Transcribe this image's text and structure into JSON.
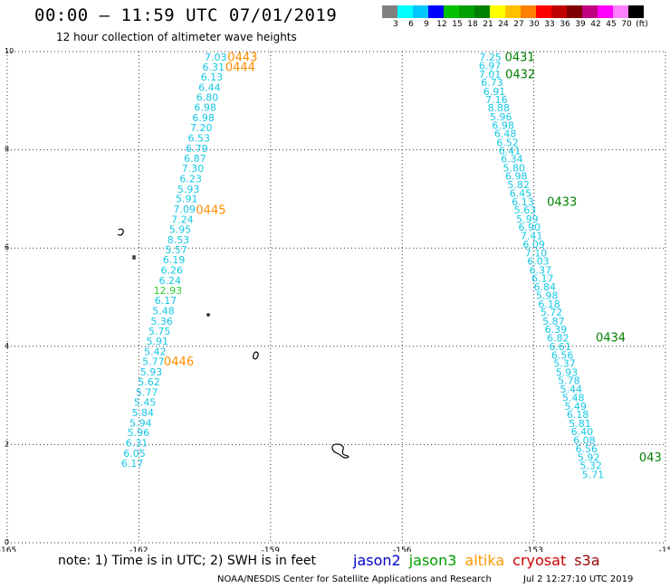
{
  "header": {
    "title": "00:00 – 11:59 UTC 07/01/2019",
    "subtitle": "12 hour collection of altimeter wave heights"
  },
  "legend": {
    "colors": [
      "#808080",
      "#00ffff",
      "#00c8ff",
      "#0000ff",
      "#00c000",
      "#00a000",
      "#008000",
      "#ffff00",
      "#ffc000",
      "#ff8000",
      "#ff0000",
      "#c00000",
      "#800000",
      "#c00080",
      "#ff00ff",
      "#ff80ff",
      "#000000"
    ],
    "labels": [
      "3",
      "6",
      "9",
      "12",
      "15",
      "18",
      "21",
      "24",
      "27",
      "30",
      "33",
      "36",
      "39",
      "42",
      "45",
      "70",
      "(ft)"
    ]
  },
  "map": {
    "lon_min": -165,
    "lon_max": -150,
    "lat_min": 0,
    "lat_max": 10,
    "x_ticks": [
      "-165",
      "-162",
      "-159",
      "-156",
      "-153",
      "-15"
    ],
    "y_ticks": [
      "0",
      "2",
      "4",
      "6",
      "8",
      "10"
    ],
    "track_colors": {
      "cyan": "#14c8e6",
      "green": "#30d030",
      "orange": "#ff8c00",
      "darkgreen": "#008000"
    },
    "track1": [
      {
        "lon": -160.25,
        "lat": 9.82,
        "v": "7.03"
      },
      {
        "lon": -160.3,
        "lat": 9.61,
        "v": "6.31"
      },
      {
        "lon": -160.34,
        "lat": 9.41,
        "v": "6.13"
      },
      {
        "lon": -160.39,
        "lat": 9.2,
        "v": "6.44"
      },
      {
        "lon": -160.44,
        "lat": 9.0,
        "v": "6.80"
      },
      {
        "lon": -160.49,
        "lat": 8.79,
        "v": "6.98"
      },
      {
        "lon": -160.53,
        "lat": 8.58,
        "v": "6.98"
      },
      {
        "lon": -160.58,
        "lat": 8.38,
        "v": "7.20"
      },
      {
        "lon": -160.63,
        "lat": 8.17,
        "v": "6.53"
      },
      {
        "lon": -160.68,
        "lat": 7.96,
        "v": "6.79"
      },
      {
        "lon": -160.72,
        "lat": 7.75,
        "v": "6.87"
      },
      {
        "lon": -160.77,
        "lat": 7.55,
        "v": "7.30"
      },
      {
        "lon": -160.82,
        "lat": 7.34,
        "v": "6.23"
      },
      {
        "lon": -160.87,
        "lat": 7.13,
        "v": "5.93"
      },
      {
        "lon": -160.91,
        "lat": 6.93,
        "v": "5.91"
      },
      {
        "lon": -160.96,
        "lat": 6.72,
        "v": "7.09"
      },
      {
        "lon": -161.01,
        "lat": 6.51,
        "v": "7.24"
      },
      {
        "lon": -161.06,
        "lat": 6.31,
        "v": "5.95"
      },
      {
        "lon": -161.1,
        "lat": 6.1,
        "v": "8.53"
      },
      {
        "lon": -161.15,
        "lat": 5.89,
        "v": "5.57"
      },
      {
        "lon": -161.2,
        "lat": 5.69,
        "v": "6.19"
      },
      {
        "lon": -161.25,
        "lat": 5.48,
        "v": "6.26"
      },
      {
        "lon": -161.29,
        "lat": 5.27,
        "v": "6.24"
      },
      {
        "lon": -161.34,
        "lat": 5.06,
        "v": "12.93",
        "c": "green"
      },
      {
        "lon": -161.39,
        "lat": 4.86,
        "v": "6.17"
      },
      {
        "lon": -161.44,
        "lat": 4.65,
        "v": "5.48"
      },
      {
        "lon": -161.48,
        "lat": 4.44,
        "v": "5.36"
      },
      {
        "lon": -161.53,
        "lat": 4.24,
        "v": "5.75"
      },
      {
        "lon": -161.58,
        "lat": 4.03,
        "v": "5.91"
      },
      {
        "lon": -161.63,
        "lat": 3.82,
        "v": "5.42"
      },
      {
        "lon": -161.67,
        "lat": 3.62,
        "v": "5.77"
      },
      {
        "lon": -161.72,
        "lat": 3.41,
        "v": "5.93"
      },
      {
        "lon": -161.77,
        "lat": 3.2,
        "v": "5.62"
      },
      {
        "lon": -161.82,
        "lat": 2.99,
        "v": "5.77"
      },
      {
        "lon": -161.86,
        "lat": 2.79,
        "v": "5.45"
      },
      {
        "lon": -161.91,
        "lat": 2.58,
        "v": "5.84"
      },
      {
        "lon": -161.96,
        "lat": 2.37,
        "v": "5.94"
      },
      {
        "lon": -162.01,
        "lat": 2.17,
        "v": "5.96"
      },
      {
        "lon": -162.05,
        "lat": 1.96,
        "v": "6.31"
      },
      {
        "lon": -162.1,
        "lat": 1.75,
        "v": "6.05"
      },
      {
        "lon": -162.15,
        "lat": 1.55,
        "v": "6.17"
      }
    ],
    "track2": [
      {
        "lon": -153.99,
        "lat": 9.82,
        "v": "7.25"
      },
      {
        "lon": -154.0,
        "lat": 9.64,
        "v": "6.97"
      },
      {
        "lon": -154.0,
        "lat": 9.47,
        "v": "7.01"
      },
      {
        "lon": -153.95,
        "lat": 9.3,
        "v": "6.73"
      },
      {
        "lon": -153.9,
        "lat": 9.12,
        "v": "6.91"
      },
      {
        "lon": -153.85,
        "lat": 8.95,
        "v": "7.16"
      },
      {
        "lon": -153.8,
        "lat": 8.78,
        "v": "8.88"
      },
      {
        "lon": -153.75,
        "lat": 8.6,
        "v": "5.96"
      },
      {
        "lon": -153.7,
        "lat": 8.43,
        "v": "6.98"
      },
      {
        "lon": -153.65,
        "lat": 8.26,
        "v": "6.48"
      },
      {
        "lon": -153.6,
        "lat": 8.08,
        "v": "6.52"
      },
      {
        "lon": -153.55,
        "lat": 7.91,
        "v": "6.41"
      },
      {
        "lon": -153.5,
        "lat": 7.74,
        "v": "6.34"
      },
      {
        "lon": -153.45,
        "lat": 7.56,
        "v": "5.80"
      },
      {
        "lon": -153.4,
        "lat": 7.39,
        "v": "6.98"
      },
      {
        "lon": -153.35,
        "lat": 7.22,
        "v": "5.82"
      },
      {
        "lon": -153.3,
        "lat": 7.04,
        "v": "6.45"
      },
      {
        "lon": -153.25,
        "lat": 6.87,
        "v": "6.13"
      },
      {
        "lon": -153.2,
        "lat": 6.7,
        "v": "5.63"
      },
      {
        "lon": -153.15,
        "lat": 6.52,
        "v": "5.99"
      },
      {
        "lon": -153.1,
        "lat": 6.35,
        "v": "6.90"
      },
      {
        "lon": -153.05,
        "lat": 6.18,
        "v": "7.41"
      },
      {
        "lon": -153.0,
        "lat": 6.0,
        "v": "6.09"
      },
      {
        "lon": -152.95,
        "lat": 5.83,
        "v": "7.10"
      },
      {
        "lon": -152.9,
        "lat": 5.66,
        "v": "6.03"
      },
      {
        "lon": -152.85,
        "lat": 5.48,
        "v": "6.37"
      },
      {
        "lon": -152.8,
        "lat": 5.31,
        "v": "6.17"
      },
      {
        "lon": -152.75,
        "lat": 5.14,
        "v": "6.84"
      },
      {
        "lon": -152.7,
        "lat": 4.96,
        "v": "5.98"
      },
      {
        "lon": -152.65,
        "lat": 4.79,
        "v": "6.18"
      },
      {
        "lon": -152.6,
        "lat": 4.62,
        "v": "5.72"
      },
      {
        "lon": -152.55,
        "lat": 4.44,
        "v": "5.87"
      },
      {
        "lon": -152.5,
        "lat": 4.27,
        "v": "6.39"
      },
      {
        "lon": -152.45,
        "lat": 4.1,
        "v": "6.82"
      },
      {
        "lon": -152.4,
        "lat": 3.92,
        "v": "6.61"
      },
      {
        "lon": -152.35,
        "lat": 3.75,
        "v": "6.56"
      },
      {
        "lon": -152.3,
        "lat": 3.58,
        "v": "5.37"
      },
      {
        "lon": -152.25,
        "lat": 3.4,
        "v": "5.93"
      },
      {
        "lon": -152.2,
        "lat": 3.23,
        "v": "5.78"
      },
      {
        "lon": -152.15,
        "lat": 3.06,
        "v": "5.44"
      },
      {
        "lon": -152.1,
        "lat": 2.88,
        "v": "5.48"
      },
      {
        "lon": -152.05,
        "lat": 2.71,
        "v": "5.49"
      },
      {
        "lon": -152.0,
        "lat": 2.54,
        "v": "6.18"
      },
      {
        "lon": -151.95,
        "lat": 2.36,
        "v": "5.81"
      },
      {
        "lon": -151.9,
        "lat": 2.19,
        "v": "6.40"
      },
      {
        "lon": -151.85,
        "lat": 2.02,
        "v": "6.08"
      },
      {
        "lon": -151.8,
        "lat": 1.84,
        "v": "6.56"
      },
      {
        "lon": -151.75,
        "lat": 1.67,
        "v": "5.92"
      },
      {
        "lon": -151.7,
        "lat": 1.5,
        "v": "5.32"
      },
      {
        "lon": -151.65,
        "lat": 1.32,
        "v": "5.71"
      }
    ],
    "times": [
      {
        "lon": -159.98,
        "lat": 9.81,
        "v": "0443",
        "c": "orange"
      },
      {
        "lon": -160.03,
        "lat": 9.6,
        "v": "0444",
        "c": "orange"
      },
      {
        "lon": -160.7,
        "lat": 6.69,
        "v": "0445",
        "c": "orange"
      },
      {
        "lon": -161.43,
        "lat": 3.61,
        "v": "0446",
        "c": "orange"
      },
      {
        "lon": -153.66,
        "lat": 9.81,
        "v": "0431",
        "c": "darkgreen"
      },
      {
        "lon": -153.65,
        "lat": 9.46,
        "v": "0432",
        "c": "darkgreen"
      },
      {
        "lon": -152.7,
        "lat": 6.86,
        "v": "0433",
        "c": "darkgreen"
      },
      {
        "lon": -151.59,
        "lat": 4.1,
        "v": "0434",
        "c": "darkgreen"
      },
      {
        "lon": -150.6,
        "lat": 1.66,
        "v": "043",
        "c": "darkgreen"
      }
    ]
  },
  "footer": {
    "note": "note: 1) Time is in UTC; 2) SWH is in feet",
    "satellites": [
      {
        "name": "jason2",
        "color": "#0000cc"
      },
      {
        "name": "jason3",
        "color": "#00a000"
      },
      {
        "name": "altika",
        "color": "#ff9900"
      },
      {
        "name": "cryosat",
        "color": "#cc0000"
      },
      {
        "name": "s3a",
        "color": "#990000"
      }
    ],
    "credit": "NOAA/NESDIS Center for Satellite Applications and Research",
    "timestamp": "Jul  2 12:27:10 UTC 2019"
  }
}
